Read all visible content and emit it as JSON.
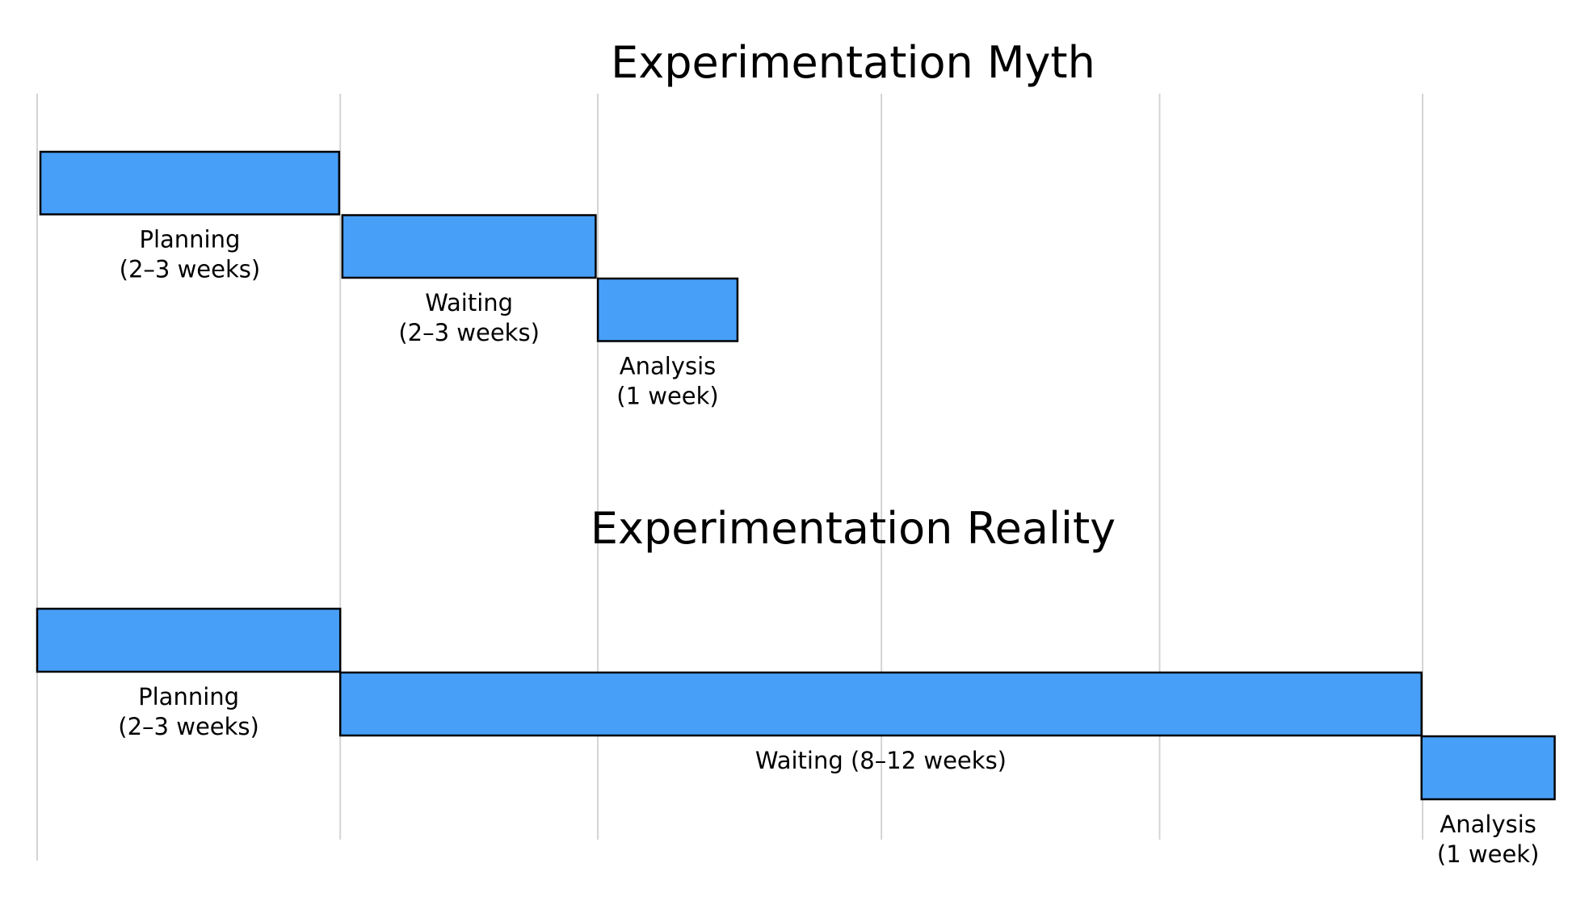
{
  "chart_data": {
    "type": "gantt",
    "x_unit": "weeks",
    "xlim": [
      0,
      14.18
    ],
    "grid": true,
    "gridlines_x": [
      0,
      2.8,
      5.18,
      7.8,
      10.37,
      12.8
    ],
    "bar_color": "#489ff8",
    "panels": [
      {
        "title": "Experimentation Myth",
        "tasks": [
          {
            "label": [
              "Planning",
              "(2–3 weeks)"
            ],
            "start": 0.03,
            "end": 2.79,
            "row": 0
          },
          {
            "label": [
              "Waiting",
              "(2–3 weeks)"
            ],
            "start": 2.82,
            "end": 5.16,
            "row": 1
          },
          {
            "label": [
              "Analysis",
              "(1 week)"
            ],
            "start": 5.18,
            "end": 6.47,
            "row": 2
          }
        ]
      },
      {
        "title": "Experimentation Reality",
        "tasks": [
          {
            "label": [
              "Planning",
              "(2–3 weeks)"
            ],
            "start": 0,
            "end": 2.8,
            "row": 0
          },
          {
            "label": [
              "Waiting (8–12 weeks)"
            ],
            "start": 2.8,
            "end": 12.79,
            "row": 1
          },
          {
            "label": [
              "Analysis",
              "(1 week)"
            ],
            "start": 12.79,
            "end": 14.02,
            "row": 2
          }
        ]
      }
    ]
  }
}
